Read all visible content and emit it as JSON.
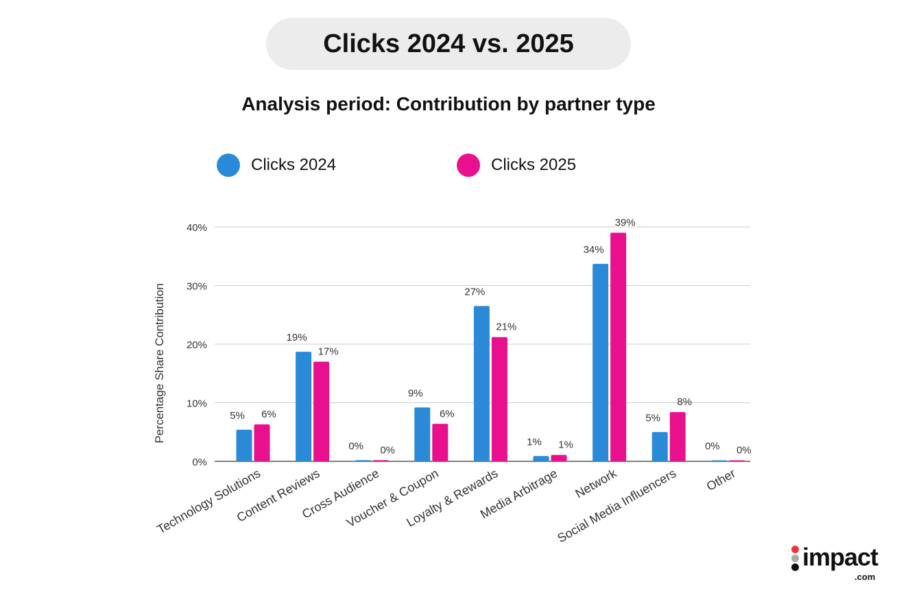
{
  "header": {
    "title": "Clicks 2024 vs. 2025",
    "subtitle": "Analysis period: Contribution by partner type"
  },
  "logo": {
    "text": "impact",
    "suffix": ".com"
  },
  "chart_data": {
    "type": "bar",
    "title": "Clicks 2024 vs. 2025",
    "subtitle": "Analysis period: Contribution by partner type",
    "xlabel": "",
    "ylabel": "Percentage Share Contribution",
    "ylim": [
      0,
      40
    ],
    "yticks": [
      "0%",
      "10%",
      "20%",
      "30%",
      "40%"
    ],
    "grid": true,
    "legend_position": "top",
    "categories": [
      "Technology Solutions",
      "Content Reviews",
      "Cross Audience",
      "Voucher & Coupon",
      "Loyalty & Rewards",
      "Media Arbitrage",
      "Network",
      "Social Media Influencers",
      "Other"
    ],
    "series": [
      {
        "name": "Clicks 2024",
        "color": "#2b8ad8",
        "values": [
          5.4,
          18.7,
          0.2,
          9.2,
          26.5,
          0.9,
          33.7,
          5.0,
          0.05
        ],
        "labels": [
          "5%",
          "19%",
          "0%",
          "9%",
          "27%",
          "1%",
          "34%",
          "5%",
          "0%"
        ]
      },
      {
        "name": "Clicks 2025",
        "color": "#e8108c",
        "values": [
          6.3,
          17.0,
          0.2,
          6.4,
          21.2,
          1.1,
          39.0,
          8.4,
          0.05
        ],
        "labels": [
          "6%",
          "17%",
          "0%",
          "6%",
          "21%",
          "1%",
          "39%",
          "8%",
          "0%"
        ]
      }
    ]
  }
}
